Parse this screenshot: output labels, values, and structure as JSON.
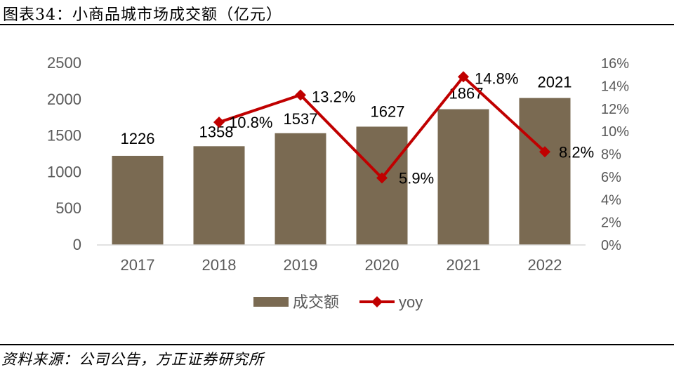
{
  "header": {
    "title": "图表34：小商品城市场成交额（亿元）"
  },
  "footer": {
    "source": "资料来源：公司公告，方正证券研究所"
  },
  "chart_data": {
    "type": "bar",
    "categories": [
      "2017",
      "2018",
      "2019",
      "2020",
      "2021",
      "2022"
    ],
    "series": [
      {
        "name": "成交额",
        "type": "bar",
        "axis": "left",
        "values": [
          1226,
          1358,
          1537,
          1627,
          1867,
          2021
        ],
        "labels": [
          "1226",
          "1358",
          "1537",
          "1627",
          "1867",
          "2021"
        ],
        "color": "#7a6a52"
      },
      {
        "name": "yoy",
        "type": "line",
        "axis": "right",
        "values": [
          null,
          10.8,
          13.2,
          5.9,
          14.8,
          8.2
        ],
        "labels": [
          "",
          "10.8%",
          "13.2%",
          "5.9%",
          "14.8%",
          "8.2%"
        ],
        "color": "#c00000",
        "marker": "diamond"
      }
    ],
    "y_left": {
      "ylim": [
        0,
        2500
      ],
      "ticks": [
        "0",
        "500",
        "1000",
        "1500",
        "2000",
        "2500"
      ]
    },
    "y_right": {
      "ylim": [
        0,
        16
      ],
      "ticks": [
        "0%",
        "2%",
        "4%",
        "6%",
        "8%",
        "10%",
        "12%",
        "14%",
        "16%"
      ]
    },
    "grid": false,
    "legend_position": "bottom"
  }
}
